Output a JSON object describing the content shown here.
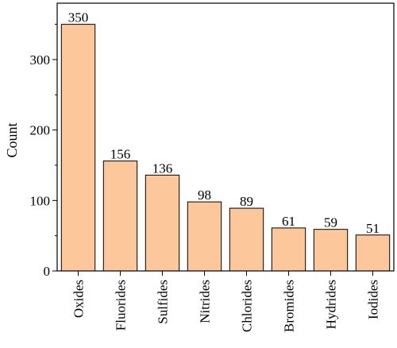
{
  "chart_data": {
    "type": "bar",
    "categories": [
      "Oxides",
      "Fluorides",
      "Sulfides",
      "Nitrides",
      "Chlorides",
      "Bromides",
      "Hydrides",
      "Iodides"
    ],
    "values": [
      350,
      156,
      136,
      98,
      89,
      61,
      59,
      51
    ],
    "value_labels": [
      "350",
      "156",
      "136",
      "98",
      "89",
      "61",
      "59",
      "51"
    ],
    "title": "",
    "xlabel": "",
    "ylabel": "Count",
    "ylim": [
      0,
      380
    ],
    "yticks": [
      0,
      100,
      200,
      300
    ],
    "ytick_labels": [
      "0",
      "100",
      "200",
      "300"
    ],
    "grid": false,
    "bar_color": "#fbc79b",
    "bar_edge_color": "#000000"
  }
}
